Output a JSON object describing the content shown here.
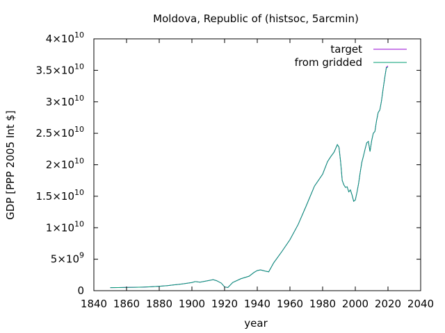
{
  "chart_data": {
    "type": "line",
    "title": "Moldova, Republic of (histsoc, 5arcmin)",
    "xlabel": "year",
    "ylabel": "GDP [PPP 2005 Int $]",
    "xlim": [
      1840,
      2040
    ],
    "ylim": [
      0,
      40000000000
    ],
    "grid": false,
    "legend_position": "top-right",
    "x_ticks": [
      1840,
      1860,
      1880,
      1900,
      1920,
      1940,
      1960,
      1980,
      2000,
      2020,
      2040
    ],
    "y_ticks": [
      {
        "value": 0,
        "mant": "0",
        "exp": ""
      },
      {
        "value": 5000000000,
        "mant": "5×10",
        "exp": "9"
      },
      {
        "value": 10000000000,
        "mant": "1×10",
        "exp": "10"
      },
      {
        "value": 15000000000,
        "mant": "1.5×10",
        "exp": "10"
      },
      {
        "value": 20000000000,
        "mant": "2×10",
        "exp": "10"
      },
      {
        "value": 25000000000,
        "mant": "2.5×10",
        "exp": "10"
      },
      {
        "value": 30000000000,
        "mant": "3×10",
        "exp": "10"
      },
      {
        "value": 35000000000,
        "mant": "3.5×10",
        "exp": "10"
      },
      {
        "value": 40000000000,
        "mant": "4×10",
        "exp": "10"
      }
    ],
    "x": [
      1850,
      1855,
      1860,
      1865,
      1870,
      1875,
      1880,
      1885,
      1888,
      1890,
      1895,
      1900,
      1902,
      1905,
      1910,
      1913,
      1915,
      1918,
      1920,
      1922,
      1925,
      1930,
      1935,
      1938,
      1940,
      1942,
      1945,
      1947,
      1950,
      1955,
      1960,
      1965,
      1970,
      1975,
      1980,
      1983,
      1985,
      1987,
      1989,
      1990,
      1991,
      1992,
      1993,
      1994,
      1995,
      1996,
      1997,
      1998,
      1999,
      2000,
      2001,
      2002,
      2003,
      2004,
      2005,
      2006,
      2007,
      2008,
      2009,
      2010,
      2011,
      2012,
      2013,
      2014,
      2015,
      2016,
      2017,
      2018,
      2019,
      2020
    ],
    "series": [
      {
        "name": "target",
        "color": "#9400d3",
        "values": [
          0.48,
          0.5,
          0.52,
          0.54,
          0.57,
          0.62,
          0.7,
          0.8,
          0.9,
          0.95,
          1.1,
          1.3,
          1.45,
          1.35,
          1.6,
          1.75,
          1.6,
          1.2,
          0.6,
          0.5,
          1.3,
          1.9,
          2.3,
          2.9,
          3.2,
          3.3,
          3.1,
          3.0,
          4.4,
          6.2,
          8.1,
          10.5,
          13.5,
          16.6,
          18.5,
          20.5,
          21.3,
          22.0,
          23.2,
          22.8,
          20.5,
          17.5,
          16.8,
          16.4,
          16.5,
          15.7,
          16.0,
          15.2,
          14.2,
          14.4,
          15.6,
          17.0,
          18.8,
          20.4,
          21.4,
          22.5,
          23.5,
          23.7,
          22.1,
          23.8,
          25.0,
          25.3,
          27.0,
          28.3,
          28.7,
          30.1,
          32.0,
          33.8,
          35.5,
          35.7
        ]
      },
      {
        "name": "from gridded",
        "color": "#009e73",
        "values": [
          0.48,
          0.5,
          0.52,
          0.54,
          0.57,
          0.62,
          0.7,
          0.8,
          0.9,
          0.95,
          1.1,
          1.3,
          1.45,
          1.35,
          1.6,
          1.75,
          1.6,
          1.2,
          0.6,
          0.5,
          1.3,
          1.9,
          2.3,
          2.9,
          3.2,
          3.3,
          3.1,
          3.0,
          4.4,
          6.2,
          8.1,
          10.5,
          13.5,
          16.6,
          18.5,
          20.5,
          21.3,
          22.0,
          23.2,
          22.8,
          20.5,
          17.5,
          16.8,
          16.4,
          16.5,
          15.7,
          16.0,
          15.2,
          14.2,
          14.4,
          15.6,
          17.0,
          18.8,
          20.4,
          21.4,
          22.5,
          23.5,
          23.7,
          22.1,
          23.8,
          25.0,
          25.3,
          27.0,
          28.3,
          28.7,
          30.1,
          32.0,
          33.8,
          35.4,
          35.5
        ]
      }
    ],
    "y_scale_note": "values in units of 1e9"
  }
}
